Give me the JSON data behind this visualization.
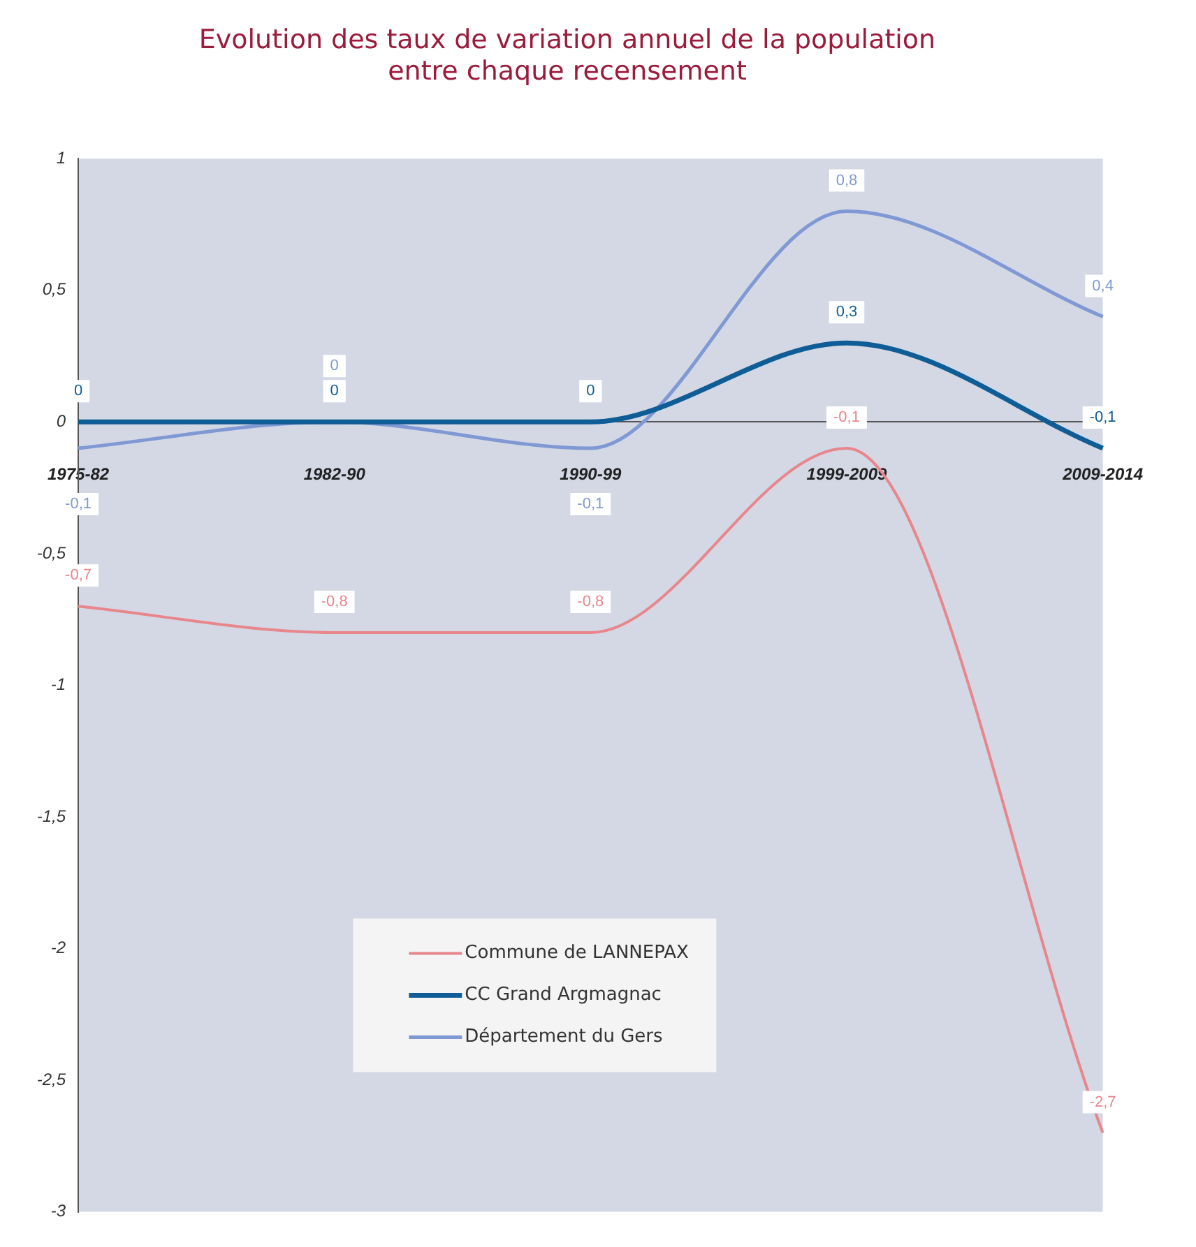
{
  "chart_data": {
    "type": "line",
    "title": "Evolution des taux de variation annuel de la population\nentre chaque recensement",
    "categories": [
      "1975-82",
      "1982-90",
      "1990-99",
      "1999-2009",
      "2009-2014"
    ],
    "series": [
      {
        "name": "Commune de LANNEPAX",
        "color": "#e8868c",
        "values": [
          -0.7,
          -0.8,
          -0.8,
          -0.1,
          -2.7
        ],
        "value_labels": [
          "-0,7",
          "-0,8",
          "-0,8",
          "-0,1",
          "-2,7"
        ]
      },
      {
        "name": "CC Grand Argmagnac",
        "color": "#0f5d96",
        "values": [
          0,
          0,
          0,
          0.3,
          -0.1
        ],
        "value_labels": [
          "0",
          "0",
          "0",
          "0,3",
          "-0,1"
        ]
      },
      {
        "name": "Département du Gers",
        "color": "#8099d4",
        "values": [
          -0.1,
          0,
          -0.1,
          0.8,
          0.4
        ],
        "value_labels": [
          "-0,1",
          "0",
          "-0,1",
          "0,8",
          "0,4"
        ]
      }
    ],
    "ylim": [
      -3,
      1
    ],
    "yticks": [
      -3,
      {
        "value": -2.5,
        "label": "-2,5"
      },
      -2,
      {
        "value": -1.5,
        "label": "-1,5"
      },
      -1,
      {
        "value": -0.5,
        "label": "-0,5"
      },
      0,
      {
        "value": 0.5,
        "label": "0,5"
      },
      1
    ],
    "grid": false,
    "legend": "bottom",
    "marker": "none",
    "line_style": "solid"
  }
}
